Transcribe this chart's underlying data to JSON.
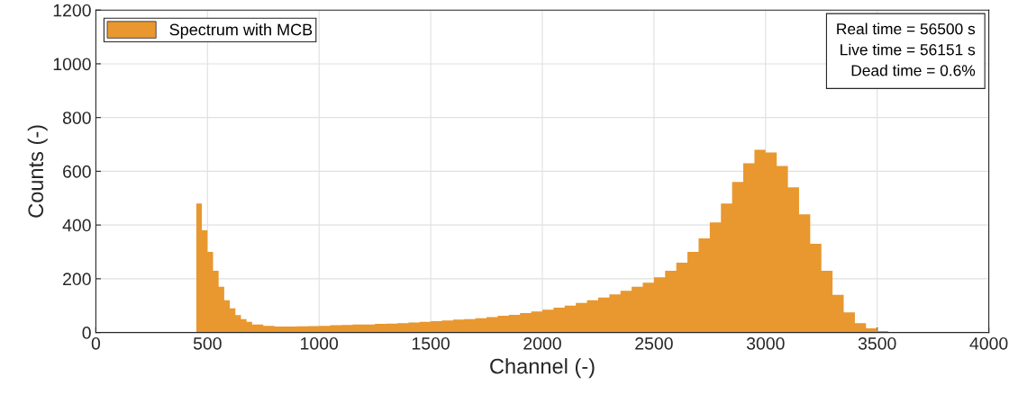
{
  "chart_data": {
    "type": "histogram",
    "xlabel": "Channel (-)",
    "ylabel": "Counts (-)",
    "bins": [
      0,
      450,
      475,
      500,
      525,
      550,
      575,
      600,
      625,
      650,
      675,
      700,
      750,
      800,
      850,
      900,
      950,
      1000,
      1050,
      1100,
      1150,
      1200,
      1250,
      1300,
      1350,
      1400,
      1450,
      1500,
      1550,
      1600,
      1650,
      1700,
      1750,
      1800,
      1850,
      1900,
      1950,
      2000,
      2050,
      2100,
      2150,
      2200,
      2250,
      2300,
      2350,
      2400,
      2450,
      2500,
      2550,
      2600,
      2650,
      2700,
      2750,
      2800,
      2850,
      2900,
      2950,
      3000,
      3050,
      3100,
      3150,
      3200,
      3250,
      3300,
      3350,
      3400,
      3450,
      3500,
      3550,
      3600,
      4000
    ],
    "series": [
      {
        "name": "Spectrum with MCB",
        "color": "#e8982f",
        "values": [
          0,
          480,
          380,
          300,
          230,
          170,
          120,
          90,
          65,
          50,
          40,
          30,
          25,
          22,
          22,
          23,
          24,
          25,
          27,
          28,
          30,
          30,
          32,
          33,
          35,
          37,
          40,
          42,
          45,
          48,
          50,
          53,
          57,
          62,
          66,
          72,
          78,
          85,
          92,
          100,
          110,
          120,
          130,
          142,
          155,
          170,
          185,
          205,
          230,
          260,
          300,
          350,
          410,
          480,
          560,
          630,
          680,
          670,
          620,
          540,
          440,
          330,
          230,
          140,
          75,
          35,
          15,
          5,
          2,
          0
        ]
      }
    ],
    "xlim": [
      0,
      4000
    ],
    "xticks": [
      0,
      500,
      1000,
      1500,
      2000,
      2500,
      3000,
      3500,
      4000
    ],
    "ylim": [
      0,
      1200
    ],
    "yticks": [
      0,
      200,
      400,
      600,
      800,
      1000,
      1200
    ],
    "grid": true,
    "legend": "top left",
    "annotations": [
      "Real time = 56500 s",
      "Live time = 56151 s",
      "Dead time = 0.6%"
    ]
  }
}
